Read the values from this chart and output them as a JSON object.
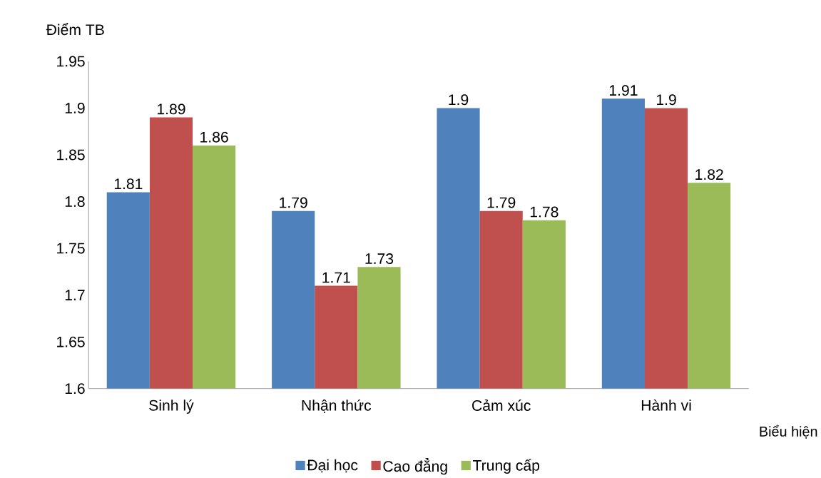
{
  "chart_data": {
    "type": "bar",
    "ylabel": "Điểm TB",
    "xlabel": "Biểu hiện",
    "categories": [
      "Sinh lý",
      "Nhận thức",
      "Cảm xúc",
      "Hành vi"
    ],
    "series": [
      {
        "name": "Đại học",
        "color": "#4f81bd",
        "values": [
          1.81,
          1.79,
          1.9,
          1.91
        ]
      },
      {
        "name": "Cao đẳng",
        "color": "#c0504d",
        "values": [
          1.89,
          1.71,
          1.79,
          1.9
        ]
      },
      {
        "name": "Trung cấp",
        "color": "#9bbb59",
        "values": [
          1.86,
          1.73,
          1.78,
          1.82
        ]
      }
    ],
    "ylim": [
      1.6,
      1.95
    ],
    "yticks": [
      1.6,
      1.65,
      1.7,
      1.75,
      1.8,
      1.85,
      1.9,
      1.95
    ],
    "data_labels": true,
    "legend": "bottom"
  }
}
